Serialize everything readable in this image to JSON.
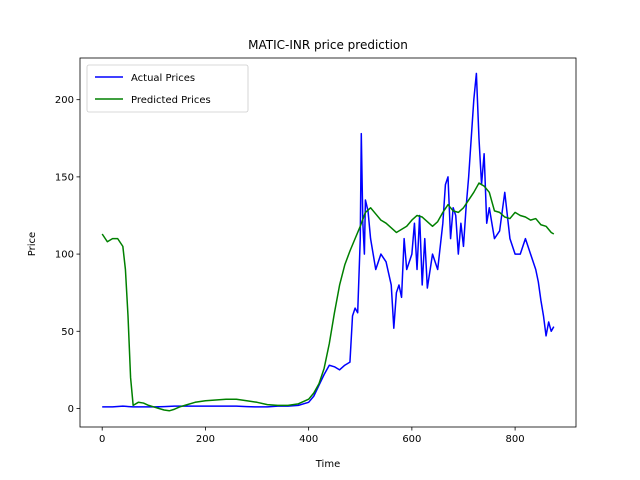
{
  "chart_data": {
    "type": "line",
    "title": "MATIC-INR price prediction",
    "xlabel": "Time",
    "ylabel": "Price",
    "xlim": [
      -43,
      918
    ],
    "ylim": [
      -12,
      227
    ],
    "xticks": [
      0,
      200,
      400,
      600,
      800
    ],
    "yticks": [
      0,
      50,
      100,
      150,
      200
    ],
    "legend_position": "top-left",
    "grid": false,
    "series": [
      {
        "name": "Actual Prices",
        "color": "#0000ff",
        "x": [
          0,
          20,
          40,
          60,
          80,
          100,
          120,
          140,
          160,
          180,
          200,
          220,
          240,
          260,
          280,
          300,
          320,
          340,
          360,
          380,
          400,
          410,
          420,
          430,
          440,
          450,
          460,
          470,
          480,
          485,
          490,
          495,
          500,
          502,
          505,
          508,
          510,
          515,
          520,
          525,
          530,
          540,
          550,
          560,
          565,
          570,
          575,
          580,
          585,
          590,
          600,
          605,
          610,
          615,
          620,
          625,
          630,
          640,
          650,
          660,
          665,
          670,
          675,
          680,
          685,
          690,
          695,
          700,
          705,
          710,
          715,
          720,
          725,
          730,
          735,
          740,
          745,
          750,
          760,
          770,
          780,
          790,
          800,
          810,
          820,
          830,
          840,
          845,
          850,
          855,
          860,
          865,
          870,
          875
        ],
        "values": [
          1,
          1,
          1.5,
          1,
          1,
          1,
          1.2,
          1.5,
          1.5,
          1.5,
          1.5,
          1.5,
          1.5,
          1.5,
          1.2,
          1,
          1,
          1.5,
          1.5,
          2,
          4,
          8,
          15,
          22,
          28,
          27,
          25,
          28,
          30,
          60,
          65,
          62,
          110,
          178,
          120,
          100,
          135,
          128,
          110,
          100,
          90,
          100,
          95,
          80,
          52,
          75,
          80,
          72,
          110,
          90,
          100,
          120,
          90,
          125,
          80,
          110,
          78,
          100,
          90,
          120,
          145,
          150,
          110,
          130,
          125,
          100,
          120,
          105,
          130,
          150,
          175,
          200,
          217,
          175,
          145,
          165,
          120,
          130,
          110,
          115,
          140,
          110,
          100,
          100,
          110,
          100,
          90,
          82,
          70,
          60,
          47,
          56,
          50,
          53
        ]
      },
      {
        "name": "Predicted Prices",
        "color": "#008000",
        "x": [
          0,
          10,
          20,
          30,
          40,
          45,
          50,
          55,
          60,
          70,
          80,
          90,
          100,
          110,
          120,
          130,
          140,
          150,
          160,
          180,
          200,
          220,
          240,
          260,
          280,
          300,
          320,
          340,
          360,
          380,
          400,
          410,
          420,
          430,
          440,
          450,
          460,
          470,
          480,
          490,
          500,
          510,
          520,
          530,
          540,
          550,
          560,
          570,
          580,
          590,
          600,
          610,
          620,
          630,
          640,
          650,
          660,
          670,
          680,
          690,
          700,
          710,
          720,
          730,
          740,
          750,
          760,
          770,
          780,
          790,
          800,
          810,
          820,
          830,
          840,
          850,
          860,
          870,
          875
        ],
        "values": [
          113,
          108,
          110,
          110,
          105,
          90,
          60,
          20,
          2,
          4,
          3.5,
          2,
          1,
          0,
          -1,
          -1.5,
          -0.5,
          1,
          2,
          4,
          5,
          5.5,
          6,
          6,
          5,
          4,
          2.5,
          2,
          2,
          3,
          6,
          10,
          16,
          26,
          42,
          62,
          80,
          93,
          102,
          110,
          118,
          127,
          130,
          126,
          122,
          120,
          117,
          114,
          116,
          118,
          122,
          125,
          124,
          121,
          118,
          121,
          127,
          132,
          128,
          127,
          130,
          135,
          140,
          146,
          144,
          140,
          128,
          127,
          124,
          123,
          127,
          125,
          124,
          122,
          123,
          119,
          118,
          114,
          113
        ]
      }
    ]
  }
}
